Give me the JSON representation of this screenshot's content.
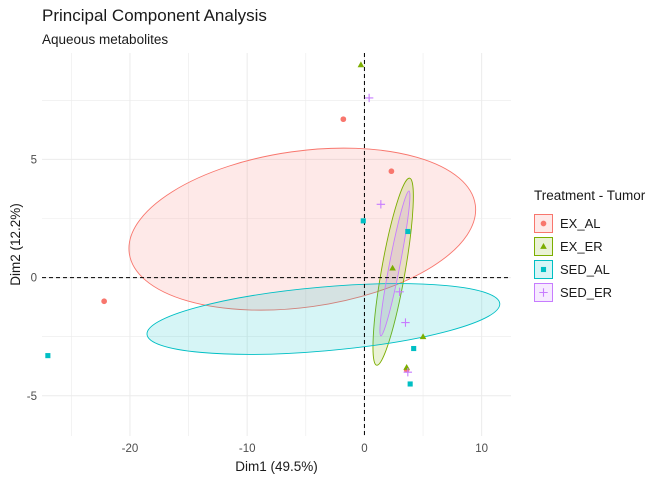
{
  "chart_data": {
    "type": "scatter",
    "title": "Principal Component Analysis",
    "subtitle": "Aqueous metabolites",
    "xlabel": "Dim1 (49.5%)",
    "ylabel": "Dim2 (12.2%)",
    "xlim": [
      -27.5,
      12.5
    ],
    "ylim": [
      -6.7,
      9.5
    ],
    "x_ticks": [
      -20,
      -10,
      0,
      10
    ],
    "y_ticks": [
      -5,
      0,
      5
    ],
    "grid": true,
    "reference_lines": {
      "x": 0,
      "y": 0
    },
    "legend": {
      "title": "Treatment - Tumor",
      "placement": "right"
    },
    "series": [
      {
        "name": "EX_AL",
        "color": "#F8766D",
        "shape": "circle",
        "points": [
          [
            -22.2,
            -1.0
          ],
          [
            -1.8,
            6.7
          ],
          [
            2.3,
            4.5
          ],
          [
            3.6,
            -3.9
          ]
        ],
        "ellipse": {
          "cx": -5.3,
          "cy": 2.05,
          "rx": 29.8,
          "ry": 6.6,
          "angle": -8
        }
      },
      {
        "name": "EX_ER",
        "color": "#7CAE00",
        "shape": "triangle",
        "points": [
          [
            -0.3,
            9.0
          ],
          [
            2.4,
            0.4
          ],
          [
            5.0,
            -2.5
          ],
          [
            3.6,
            -3.8
          ]
        ],
        "ellipse": {
          "cx": 2.45,
          "cy": 0.25,
          "rx": 16.2,
          "ry": 1.0,
          "angle": -80
        }
      },
      {
        "name": "SED_AL",
        "color": "#00BFC4",
        "shape": "square",
        "points": [
          [
            -27.0,
            -3.3
          ],
          [
            -0.1,
            2.4
          ],
          [
            3.7,
            1.95
          ],
          [
            4.2,
            -3.0
          ],
          [
            3.9,
            -4.5
          ]
        ],
        "ellipse": {
          "cx": -3.5,
          "cy": -1.75,
          "rx": 30.2,
          "ry": 2.7,
          "angle": -5
        }
      },
      {
        "name": "SED_ER",
        "color": "#C77CFF",
        "shape": "plus",
        "points": [
          [
            0.4,
            7.6
          ],
          [
            1.4,
            3.1
          ],
          [
            3.0,
            -0.6
          ],
          [
            3.5,
            -1.9
          ],
          [
            3.7,
            -4.0
          ]
        ],
        "ellipse": {
          "cx": 2.6,
          "cy": 0.6,
          "rx": 12.6,
          "ry": 0.45,
          "angle": -79
        }
      }
    ]
  }
}
